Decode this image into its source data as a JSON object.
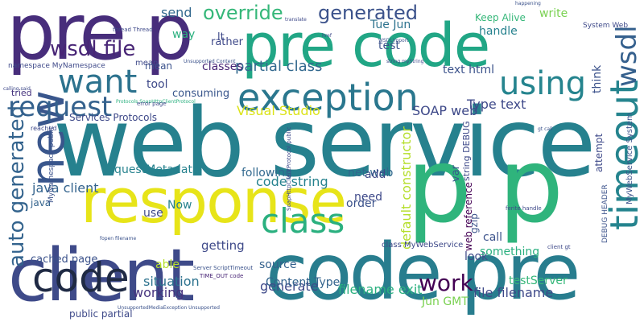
{
  "words": [
    "web service",
    "pre p",
    "p p",
    "code pre",
    "pre code",
    "client",
    "response",
    "timeout",
    "new",
    "code",
    "exception",
    "auto generated",
    "wsdl",
    "using",
    "want",
    "request",
    "class",
    "wsdl file",
    "generated",
    "override",
    "work",
    "Type text",
    "default constructor",
    "send",
    "partial class",
    "tried",
    "Visual Studio",
    "SOAP web",
    "think",
    "requestMetadata",
    "java client",
    "code string",
    "situation",
    "working",
    "generate",
    "filename exit",
    "file filename",
    "Jun GMT",
    "Content Type",
    "testServer",
    "cached page",
    "getting",
    "source",
    "look",
    "Services Protocols",
    "text html",
    "classes",
    "handle",
    "write",
    "Tue Jun",
    "test",
    "Keep Alive",
    "tool",
    "consuming",
    "namespace MyNamespace",
    "mean",
    "way",
    "lt",
    "rather",
    "net web",
    "need",
    "add",
    "able",
    "Now",
    "call",
    "something",
    "order",
    "use",
    "public partial",
    "attempt",
    "var",
    "web reference",
    "gzip",
    "following",
    "string DEBUG",
    "MyWebService System",
    "System Web",
    "DEBUG HEADER",
    "java",
    "MyNamespace public",
    "TIME_OUT code",
    "Server ScriptTimeout",
    "class MyWebService",
    "UnsupportedMediaException Unsupported",
    "Protocols SoapHttpClientProtocol",
    "SoapHttpClientProtocol public",
    "thread Thread",
    "error page",
    "happening",
    "client gt",
    "ferite handle",
    "calling said",
    "Unsupported Content",
    "translate",
    "WSDLimport",
    "string myString",
    "fopen filename",
    "href",
    "gt call",
    "mean",
    "reached"
  ]
}
